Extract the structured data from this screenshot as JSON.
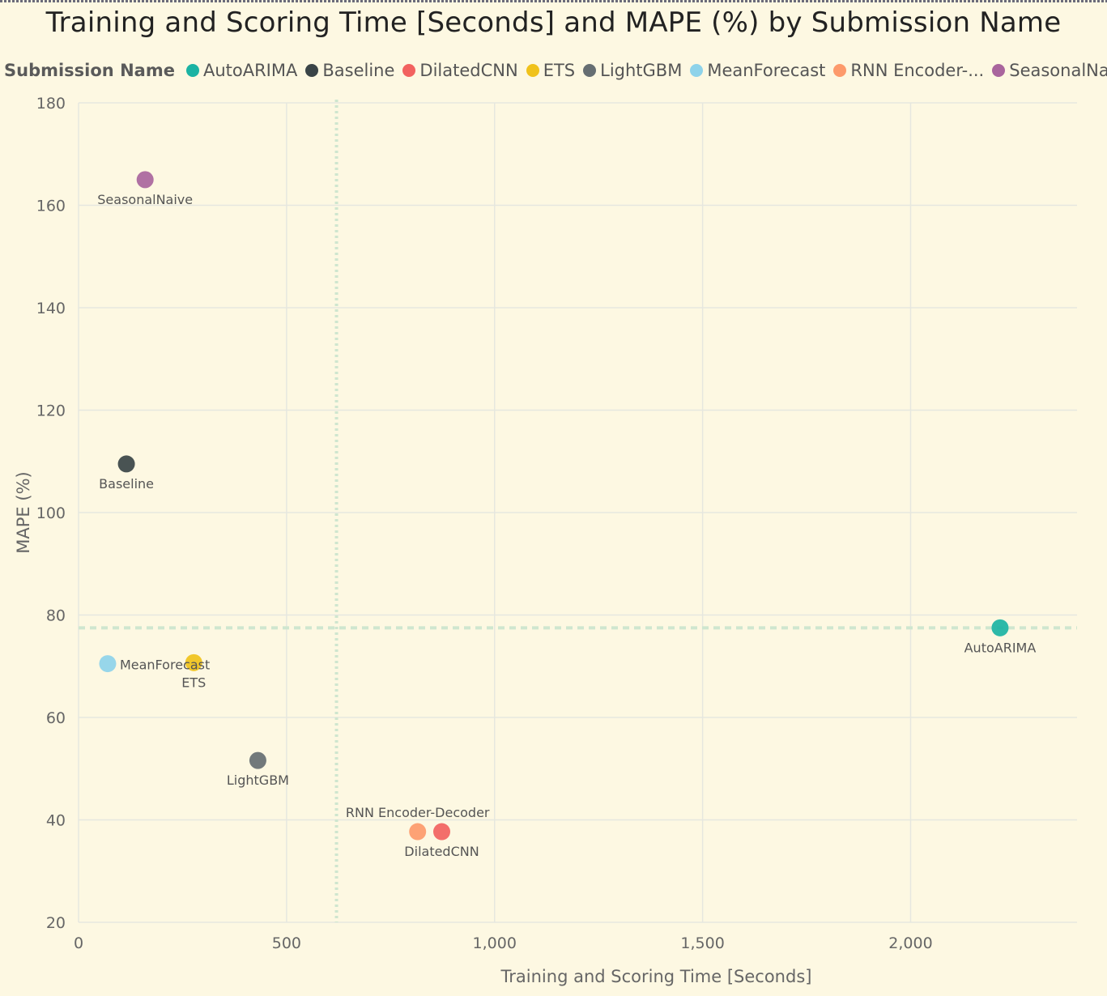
{
  "chart_data": {
    "type": "scatter",
    "title": "Training and Scoring Time [Seconds] and MAPE (%) by Submission Name",
    "xlabel": "Training and Scoring Time [Seconds]",
    "ylabel": "MAPE (%)",
    "xlim": [
      0,
      2400
    ],
    "ylim": [
      20,
      180
    ],
    "x_ticks": [
      0,
      500,
      1000,
      1500,
      2000
    ],
    "x_tick_labels": [
      "0",
      "500",
      "1,000",
      "1,500",
      "2,000"
    ],
    "y_ticks": [
      20,
      40,
      60,
      80,
      100,
      120,
      140,
      160,
      180
    ],
    "y_tick_labels": [
      "20",
      "40",
      "60",
      "80",
      "100",
      "120",
      "140",
      "160",
      "180"
    ],
    "grid": true,
    "legend_title": "Submission Name",
    "legend_position": "top-left",
    "reference_lines": {
      "x_average": 620,
      "y_average": 77.5
    },
    "series": [
      {
        "name": "AutoARIMA",
        "legend_label": "AutoARIMA",
        "color": "#1bb3a3",
        "x": 2215,
        "y": 77.5,
        "label_pos": "below"
      },
      {
        "name": "Baseline",
        "legend_label": "Baseline",
        "color": "#3a4447",
        "x": 115,
        "y": 109.5,
        "label_pos": "below"
      },
      {
        "name": "DilatedCNN",
        "legend_label": "DilatedCNN",
        "color": "#f2625f",
        "x": 873,
        "y": 37.7,
        "label_pos": "below"
      },
      {
        "name": "ETS",
        "legend_label": "ETS",
        "color": "#f0c21b",
        "x": 277,
        "y": 70.7,
        "label_pos": "below"
      },
      {
        "name": "LightGBM",
        "legend_label": "LightGBM",
        "color": "#666e72",
        "x": 431,
        "y": 51.6,
        "label_pos": "below"
      },
      {
        "name": "MeanForecast",
        "legend_label": "MeanForecast",
        "color": "#8ed3ea",
        "x": 70,
        "y": 70.5,
        "label_pos": "right"
      },
      {
        "name": "RNN Encoder-Decoder",
        "legend_label": "RNN Encoder-...",
        "color": "#fd9a6b",
        "x": 815,
        "y": 37.7,
        "label_pos": "above"
      },
      {
        "name": "SeasonalNaive",
        "legend_label": "SeasonalNaive",
        "color": "#a9659d",
        "x": 160,
        "y": 165,
        "label_pos": "below"
      }
    ]
  }
}
